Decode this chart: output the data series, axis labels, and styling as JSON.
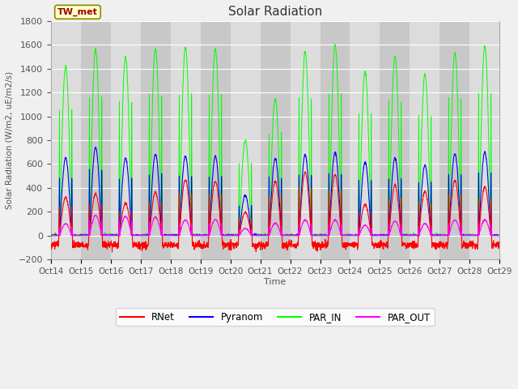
{
  "title": "Solar Radiation",
  "ylabel": "Solar Radiation (W/m2, uE/m2/s)",
  "xlabel": "Time",
  "ylim": [
    -200,
    1800
  ],
  "yticks": [
    -200,
    0,
    200,
    400,
    600,
    800,
    1000,
    1200,
    1400,
    1600,
    1800
  ],
  "xtick_labels": [
    "Oct 14",
    "Oct 15",
    "Oct 16",
    "Oct 17",
    "Oct 18",
    "Oct 19",
    "Oct 20",
    "Oct 21",
    "Oct 22",
    "Oct 23",
    "Oct 24",
    "Oct 25",
    "Oct 26",
    "Oct 27",
    "Oct 28",
    "Oct 29"
  ],
  "annotation_text": "TW_met",
  "annotation_bg": "#ffffcc",
  "annotation_border": "#888800",
  "colors": {
    "RNet": "#ff0000",
    "Pyranom": "#0000ff",
    "PAR_IN": "#00ff00",
    "PAR_OUT": "#ff00ff"
  },
  "bg_light": "#dcdcdc",
  "bg_dark": "#c8c8c8",
  "grid_color": "#ffffff",
  "num_days": 15,
  "samples_per_day": 144,
  "par_in_maxes": [
    1420,
    1560,
    1500,
    1570,
    1580,
    1570,
    800,
    1150,
    1540,
    1600,
    1380,
    1505,
    1350,
    1530,
    1590
  ],
  "pyranom_maxes": [
    650,
    740,
    650,
    685,
    665,
    665,
    335,
    650,
    675,
    700,
    615,
    650,
    590,
    685,
    700
  ],
  "rnet_maxes": [
    320,
    350,
    270,
    360,
    465,
    455,
    195,
    450,
    530,
    510,
    260,
    420,
    370,
    460,
    410
  ],
  "par_out_maxes": [
    100,
    170,
    160,
    155,
    130,
    135,
    60,
    105,
    130,
    130,
    85,
    120,
    100,
    130,
    130
  ]
}
